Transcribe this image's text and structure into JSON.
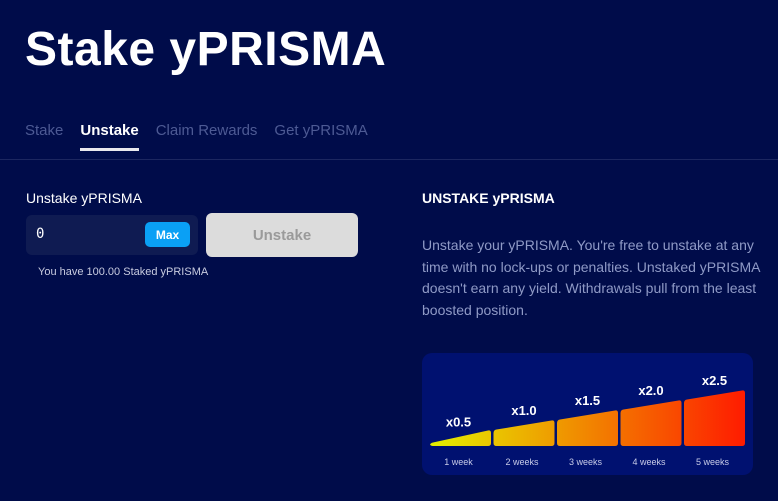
{
  "page_title": "Stake yPRISMA",
  "tabs": [
    {
      "label": "Stake",
      "active": false
    },
    {
      "label": "Unstake",
      "active": true
    },
    {
      "label": "Claim Rewards",
      "active": false
    },
    {
      "label": "Get yPRISMA",
      "active": false
    }
  ],
  "form": {
    "label": "Unstake yPRISMA",
    "amount_value": "0",
    "max_label": "Max",
    "submit_label": "Unstake",
    "balance_text": "You have 100.00 Staked yPRISMA"
  },
  "info": {
    "title": "UNSTAKE yPRISMA",
    "body": "Unstake your yPRISMA. You're free to unstake at any time with no lock-ups or penalties. Unstaked yPRISMA doesn't earn any yield. Withdrawals pull from the least boosted position."
  },
  "boost_chart": {
    "tiers": [
      {
        "multiplier": "x0.5",
        "duration": "1 week"
      },
      {
        "multiplier": "x1.0",
        "duration": "2 weeks"
      },
      {
        "multiplier": "x1.5",
        "duration": "3 weeks"
      },
      {
        "multiplier": "x2.0",
        "duration": "4 weeks"
      },
      {
        "multiplier": "x2.5",
        "duration": "5 weeks"
      }
    ],
    "colors": {
      "start": "#e4f000",
      "end": "#ff1a00",
      "panel": "#001170"
    }
  },
  "colors": {
    "background": "#000c4a",
    "accent": "#0aa0f5"
  }
}
